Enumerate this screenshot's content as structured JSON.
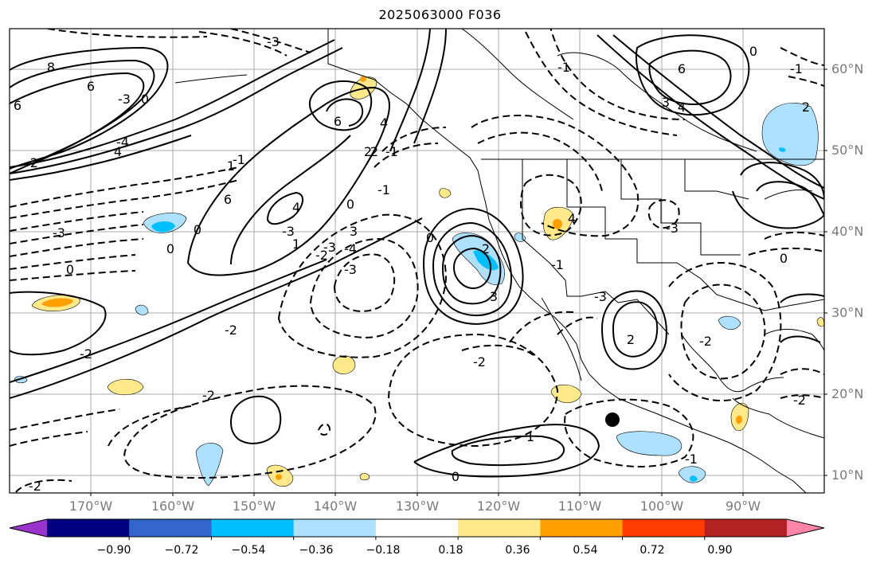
{
  "title": "2025063000 F036",
  "lat_labels": [
    "60°N",
    "50°N",
    "40°N",
    "30°N",
    "20°N",
    "10°N"
  ],
  "lon_labels": [
    "170°W",
    "160°W",
    "150°W",
    "140°W",
    "130°W",
    "120°W",
    "110°W",
    "100°W",
    "90°W"
  ],
  "colorbar": {
    "colors": [
      "#9933cc",
      "#000080",
      "#3366cc",
      "#00bfff",
      "#aee0ff",
      "#ffffff",
      "#ffe98a",
      "#ffa000",
      "#ff3d00",
      "#b22222",
      "#ff85a8"
    ],
    "tick_labels": [
      "−0.90",
      "−0.72",
      "−0.54",
      "−0.36",
      "−0.18",
      "0.18",
      "0.36",
      "0.54",
      "0.72",
      "0.90"
    ]
  },
  "contour_labels": [
    "-3",
    "8",
    "6",
    "6",
    "-3",
    "0",
    "-2",
    "-2",
    "6",
    "0",
    "-3",
    "-1",
    "0",
    "6",
    "4",
    "-3",
    "0",
    "-1",
    "2",
    "4",
    "-4",
    "3",
    "-3",
    "-2",
    "1",
    "4",
    "-4",
    "-3",
    "0",
    "-2",
    "-1",
    "2",
    "-3",
    "2",
    "-1",
    "-2",
    "2",
    "-2",
    "1",
    "0",
    "-2",
    "-1",
    "2",
    "4",
    "6",
    "0",
    "0",
    "3",
    "-1",
    "-1",
    "3",
    "4",
    "1",
    "-3",
    "0",
    "-2",
    "-2"
  ],
  "marker": "black-dot"
}
